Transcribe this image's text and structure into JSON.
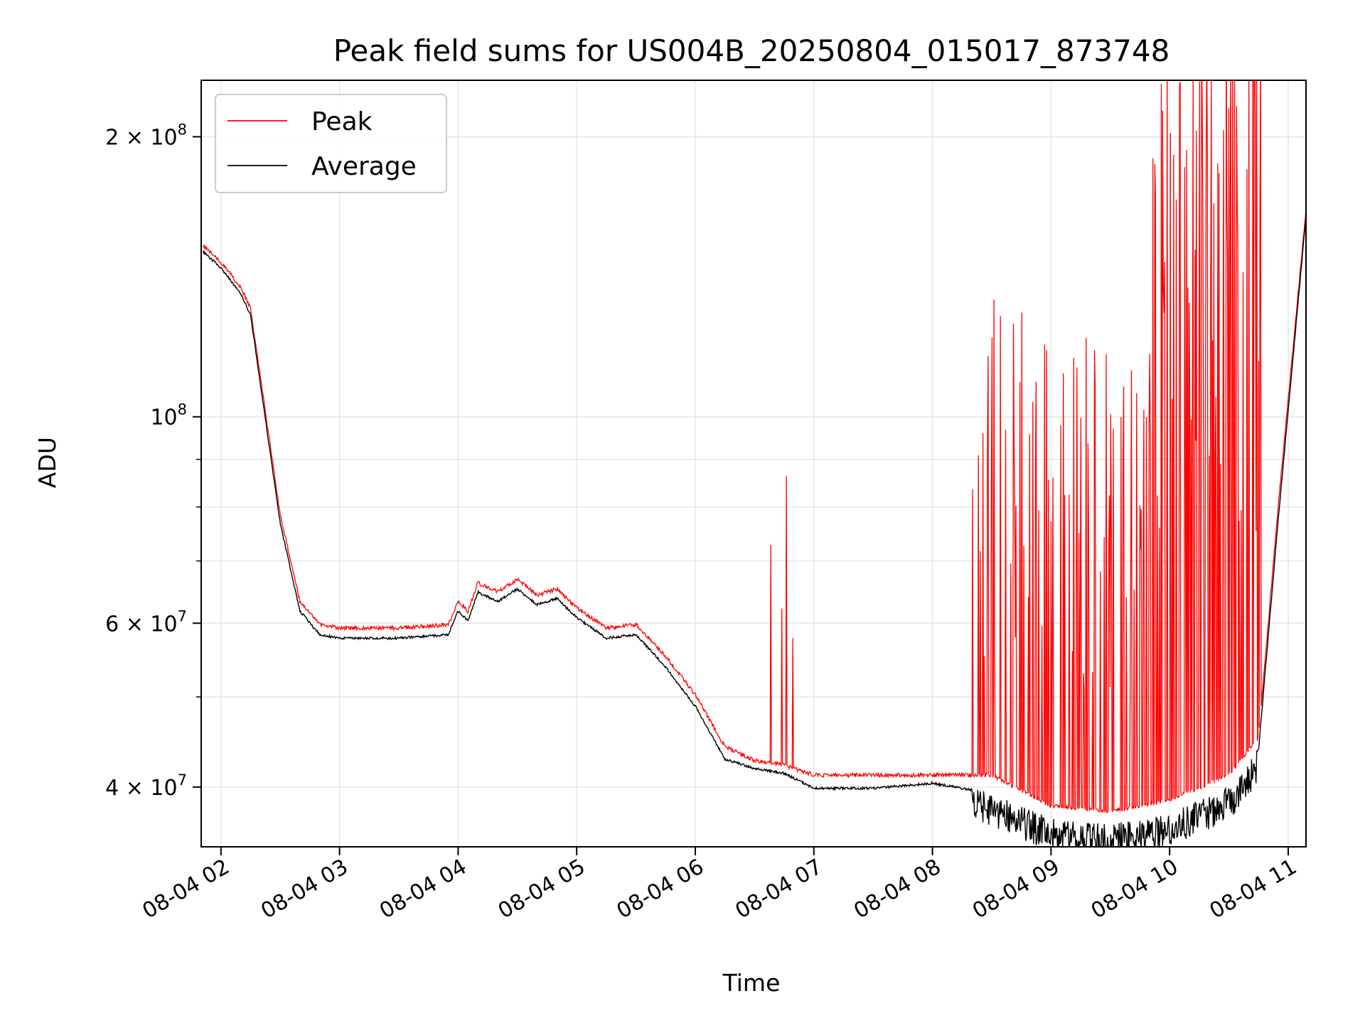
{
  "chart_data": {
    "type": "line",
    "title": "Peak field sums for US004B_20250804_015017_873748",
    "xlabel": "Time",
    "ylabel": "ADU",
    "y_scale": "log",
    "grid": true,
    "legend_position": "upper-left",
    "xlim": [
      "2025-08-04 01:50",
      "2025-08-04 11:09"
    ],
    "ylim": [
      34500000,
      230000000
    ],
    "x_tick_labels": [
      "08-04 02",
      "08-04 03",
      "08-04 04",
      "08-04 05",
      "08-04 06",
      "08-04 07",
      "08-04 08",
      "08-04 09",
      "08-04 10",
      "08-04 11"
    ],
    "y_tick_labels": [
      {
        "value": 200000000,
        "mantissa": "2",
        "exponent": "8"
      },
      {
        "value": 100000000,
        "mantissa": "",
        "exponent": "8"
      },
      {
        "value": 60000000,
        "mantissa": "6",
        "exponent": "7"
      },
      {
        "value": 40000000,
        "mantissa": "4",
        "exponent": "7"
      }
    ],
    "series": [
      {
        "name": "Peak",
        "color": "#ff0000",
        "description_of_shape": "follows Average closely until ~06:30, then frequent large spikes up to the top of the axis through ~10:45",
        "x": [
          "2025-08-04 01:51",
          "2025-08-04 02:00",
          "2025-08-04 02:10",
          "2025-08-04 02:15",
          "2025-08-04 02:30",
          "2025-08-04 02:40",
          "2025-08-04 02:50",
          "2025-08-04 03:00",
          "2025-08-04 03:30",
          "2025-08-04 03:55",
          "2025-08-04 04:00",
          "2025-08-04 04:05",
          "2025-08-04 04:10",
          "2025-08-04 04:20",
          "2025-08-04 04:30",
          "2025-08-04 04:40",
          "2025-08-04 04:50",
          "2025-08-04 05:00",
          "2025-08-04 05:15",
          "2025-08-04 05:30",
          "2025-08-04 05:45",
          "2025-08-04 06:00",
          "2025-08-04 06:15",
          "2025-08-04 06:30",
          "2025-08-04 06:45",
          "2025-08-04 07:00",
          "2025-08-04 07:30",
          "2025-08-04 08:00",
          "2025-08-04 08:30",
          "2025-08-04 09:00",
          "2025-08-04 09:30",
          "2025-08-04 10:00",
          "2025-08-04 10:30",
          "2025-08-04 10:45",
          "2025-08-04 10:55",
          "2025-08-04 11:09"
        ],
        "y": [
          152000000,
          146000000,
          137000000,
          130000000,
          78000000,
          63000000,
          59500000,
          59000000,
          59000000,
          59500000,
          63000000,
          61500000,
          66000000,
          64500000,
          66500000,
          64000000,
          65000000,
          62000000,
          59000000,
          59500000,
          55000000,
          50000000,
          44000000,
          42500000,
          42000000,
          41000000,
          41000000,
          41000000,
          41000000,
          38000000,
          37500000,
          38500000,
          41000000,
          45000000,
          80000000,
          166000000
        ]
      },
      {
        "name": "Average",
        "color": "#000000",
        "description_of_shape": "smooth baseline; noisy dips between ~08:30 and ~10:30",
        "x": [
          "2025-08-04 01:51",
          "2025-08-04 02:00",
          "2025-08-04 02:10",
          "2025-08-04 02:15",
          "2025-08-04 02:30",
          "2025-08-04 02:40",
          "2025-08-04 02:50",
          "2025-08-04 03:00",
          "2025-08-04 03:30",
          "2025-08-04 03:55",
          "2025-08-04 04:00",
          "2025-08-04 04:05",
          "2025-08-04 04:10",
          "2025-08-04 04:20",
          "2025-08-04 04:30",
          "2025-08-04 04:40",
          "2025-08-04 04:50",
          "2025-08-04 05:00",
          "2025-08-04 05:15",
          "2025-08-04 05:30",
          "2025-08-04 05:45",
          "2025-08-04 06:00",
          "2025-08-04 06:15",
          "2025-08-04 06:30",
          "2025-08-04 06:45",
          "2025-08-04 07:00",
          "2025-08-04 07:30",
          "2025-08-04 08:00",
          "2025-08-04 08:30",
          "2025-08-04 09:00",
          "2025-08-04 09:30",
          "2025-08-04 10:00",
          "2025-08-04 10:30",
          "2025-08-04 10:45",
          "2025-08-04 10:55",
          "2025-08-04 11:09"
        ],
        "y": [
          151000000,
          145000000,
          136000000,
          129000000,
          77000000,
          62000000,
          58500000,
          58000000,
          58000000,
          58500000,
          62000000,
          60500000,
          65000000,
          63500000,
          65500000,
          63000000,
          64000000,
          61000000,
          58000000,
          58500000,
          54000000,
          49000000,
          43000000,
          42000000,
          41500000,
          40000000,
          40000000,
          40500000,
          39500000,
          37000000,
          36500000,
          37500000,
          40000000,
          44000000,
          78000000,
          165000000
        ]
      }
    ]
  },
  "colors": {
    "peak": "#ff0000",
    "average": "#000000",
    "grid": "#e6e6e6"
  }
}
